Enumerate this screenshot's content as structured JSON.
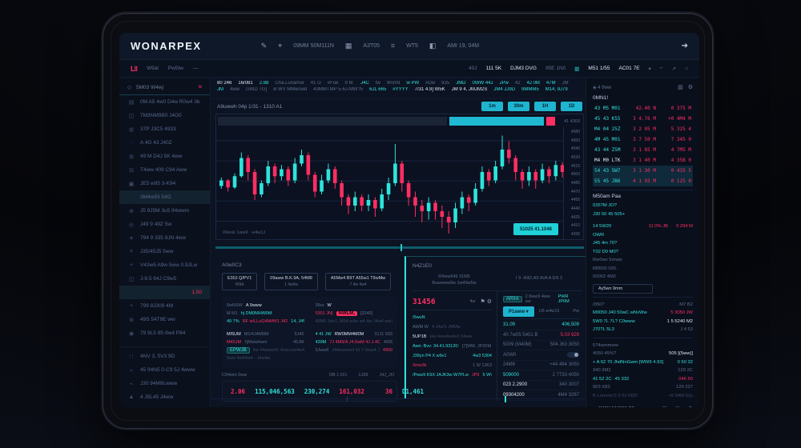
{
  "topbar": {
    "logo": "WONARPEX",
    "tokens": [
      {
        "i": "✎"
      },
      {
        "i": "⌖"
      },
      {
        "t": "09MM 50M111N"
      },
      {
        "i": "▦"
      },
      {
        "t": "A3T05"
      },
      {
        "i": "⌗"
      },
      {
        "t": "WT5"
      },
      {
        "i": "◧"
      },
      {
        "t": "AMI 19, 04M"
      }
    ],
    "far_icon": "➔"
  },
  "subbar": {
    "mark": "L‖",
    "items": [
      "W9al",
      "Pw5tw",
      "—"
    ],
    "right": [
      {
        "t": "40J",
        "c": "g"
      },
      {
        "t": "111 5K",
        "c": "w"
      },
      {
        "t": "DJM3 DVG",
        "c": "w"
      },
      {
        "t": "95E 1N0",
        "c": "g"
      },
      {
        "i": "▥",
        "c": "t"
      },
      {
        "t": "M51 1/55",
        "c": "w"
      },
      {
        "t": "AC01 7E",
        "c": "w"
      },
      {
        "i": "▾",
        "c": "g"
      },
      {
        "i": "⌐",
        "c": "g"
      },
      {
        "i": "↗",
        "c": "g"
      },
      {
        "i": "⌂",
        "c": "g"
      }
    ]
  },
  "sidebar": {
    "header": {
      "icon": "◇",
      "label": "5M03 W4wj",
      "tag": "w"
    },
    "rows": [
      {
        "icon": "▤",
        "label": "0M A5 4w0 D4w R0w4 3b"
      },
      {
        "icon": "◫",
        "label": "7M3NM9B0 J4G0"
      },
      {
        "icon": "◍",
        "label": "37P J3C5 4933"
      },
      {
        "icon": "◌",
        "label": "A 4G 43 J40Z"
      },
      {
        "icon": "⊞",
        "label": "49 M D4J 5K 4ww"
      },
      {
        "icon": "⊟",
        "label": "T4ww 409 C94 Aww"
      },
      {
        "icon": "▣",
        "label": "JE5 w95 3-K94"
      },
      {
        "icon": "",
        "label": "3M4w93 54G",
        "cls": "hl"
      },
      {
        "icon": "⊕",
        "label": "J5 9J5M 3u5 94wwm"
      },
      {
        "icon": "◎",
        "label": "J49 9 49Z 5w"
      },
      {
        "icon": "✶",
        "label": "794 9 335 9JN 4ww"
      },
      {
        "icon": "⌗",
        "label": "J35/45J5 5ww"
      },
      {
        "icon": "+",
        "label": "V43w5 A9w 5ww 0.9JLw"
      },
      {
        "icon": "◫",
        "label": "J-9.5 94J C9w5"
      },
      {
        "icon": "",
        "label": "",
        "value": "1,50",
        "cls": "hl red"
      },
      {
        "icon": "+",
        "label": "799 8J309 4M"
      },
      {
        "icon": "⊗",
        "label": "49S 54T9E ww"
      },
      {
        "icon": "◉",
        "label": "79 9L5 85-9w4 P84"
      },
      {
        "cls": "divider"
      },
      {
        "icon": "∷",
        "label": "4NV 3, 5V3 9D"
      },
      {
        "icon": "⌁",
        "label": "45 94N5 0-C9 5J 4www"
      },
      {
        "icon": "⌁",
        "label": "J30 94M9Lwww"
      },
      {
        "icon": "▲",
        "label": "4 J5L45 J4ww"
      }
    ]
  },
  "ticker": {
    "row1": [
      [
        "w",
        "80 246"
      ],
      [
        "w",
        "16/081"
      ],
      [
        "t",
        "2.88"
      ],
      [
        "g",
        "Cha.Lunamar"
      ],
      [
        "g",
        "41 G"
      ],
      [
        "g",
        "#Fue"
      ],
      [
        "g",
        "9 M."
      ],
      [
        "t",
        "J4C"
      ],
      [
        "g",
        "tw"
      ],
      [
        "g",
        "9mm9"
      ],
      [
        "t",
        "w PW"
      ],
      [
        "g",
        "#Dw"
      ],
      [
        "g",
        "935"
      ],
      [
        "t",
        "JMD"
      ],
      [
        "t",
        "0WW 44J"
      ],
      [
        "t",
        "JPw"
      ],
      [
        "g",
        "42"
      ],
      [
        "t",
        "4J 0M"
      ],
      [
        "t",
        "47M"
      ],
      [
        "g",
        "JM"
      ]
    ],
    "row2": [
      [
        "t",
        "JM"
      ],
      [
        "g",
        "4ww"
      ],
      [
        "g",
        "GWD TG]"
      ],
      [
        "g",
        "B WV MMwswd"
      ],
      [
        "g",
        "43MMTMP 5-6J-MW?5"
      ],
      [
        "t",
        "6JL 665"
      ],
      [
        "t",
        "#YYYY"
      ],
      [
        "w",
        "7/31 4.9] W5K"
      ],
      [
        "w",
        "JM 9 4, JMJM2S"
      ],
      [
        "t",
        "JM4 JJ9D"
      ],
      [
        "t",
        "9MMM5"
      ],
      [
        "t",
        "M14, 9J79"
      ]
    ]
  },
  "chart": {
    "title": "A9uwwh 04p 1/31 - 1310 A1",
    "timeframes": [
      "1m",
      "30m",
      "1H",
      "1D"
    ],
    "depth_note": "41 4303",
    "note": "09wuk 1ww9 · w4w1J",
    "cta": "51025 41.1046"
  },
  "chart_data": {
    "type": "candlestick",
    "up_color": "#2de4dc",
    "down_color": "#ff2e63",
    "yaxis_labels": [
      "4580",
      "4560",
      "4545",
      "4530",
      "4515",
      "4500",
      "4485",
      "4470",
      "4455",
      "4440",
      "4425",
      "4410",
      "4395"
    ],
    "candles": [
      [
        48,
        54,
        46,
        52
      ],
      [
        52,
        53,
        44,
        47
      ],
      [
        47,
        57,
        46,
        55
      ],
      [
        55,
        72,
        54,
        68
      ],
      [
        68,
        70,
        52,
        58
      ],
      [
        58,
        60,
        38,
        42
      ],
      [
        42,
        52,
        40,
        50
      ],
      [
        50,
        66,
        48,
        62
      ],
      [
        62,
        64,
        50,
        55
      ],
      [
        55,
        63,
        52,
        60
      ],
      [
        60,
        62,
        48,
        52
      ],
      [
        52,
        68,
        50,
        64
      ],
      [
        64,
        74,
        62,
        70
      ],
      [
        70,
        72,
        52,
        56
      ],
      [
        56,
        58,
        40,
        44
      ],
      [
        44,
        56,
        42,
        52
      ],
      [
        52,
        64,
        50,
        60
      ],
      [
        60,
        62,
        46,
        50
      ],
      [
        50,
        52,
        34,
        40
      ],
      [
        40,
        42,
        28,
        34
      ],
      [
        34,
        44,
        30,
        40
      ],
      [
        40,
        42,
        30,
        34
      ],
      [
        34,
        42,
        30,
        38
      ],
      [
        38,
        40,
        26,
        32
      ],
      [
        32,
        46,
        30,
        42
      ],
      [
        42,
        54,
        38,
        50
      ],
      [
        50,
        78,
        48,
        64
      ],
      [
        64,
        66,
        44,
        50
      ],
      [
        50,
        52,
        34,
        40
      ],
      [
        40,
        44,
        26,
        34
      ],
      [
        34,
        38,
        22,
        30
      ],
      [
        30,
        40,
        24,
        36
      ],
      [
        36,
        38,
        24,
        30
      ],
      [
        30,
        34,
        18,
        26
      ],
      [
        26,
        30,
        14,
        22
      ],
      [
        22,
        36,
        18,
        32
      ],
      [
        32,
        44,
        28,
        40
      ],
      [
        40,
        42,
        30,
        36
      ],
      [
        36,
        50,
        34,
        46
      ],
      [
        46,
        62,
        44,
        58
      ],
      [
        58,
        60,
        48,
        52
      ],
      [
        52,
        66,
        50,
        62
      ],
      [
        62,
        84,
        60,
        74
      ],
      [
        74,
        80,
        64,
        68
      ],
      [
        68,
        70,
        52,
        58
      ],
      [
        58,
        60,
        46,
        52
      ],
      [
        52,
        62,
        48,
        58
      ],
      [
        58,
        60,
        46,
        52
      ],
      [
        52,
        64,
        50,
        60
      ],
      [
        60,
        62,
        50,
        55
      ],
      [
        55,
        66,
        52,
        63
      ],
      [
        63,
        65,
        54,
        58
      ]
    ]
  },
  "left_panel": {
    "title": "A0w0C3",
    "tabs": [
      {
        "a": "E30J Q/PV1",
        "b": "W9A"
      },
      {
        "a": "09aww B.K.9A, 54M9",
        "b": "1 4w9w"
      },
      {
        "a": "A5Mw4 B9T  A55w1 T9wMw",
        "b": "7 4w 4w4"
      }
    ],
    "colA": [
      [
        [
          "g",
          "5wNXW"
        ],
        [
          "w",
          "A 9www"
        ]
      ],
      [
        [
          "g",
          "M M1"
        ],
        [
          "t",
          "hj DM0MHW0M"
        ]
      ],
      [
        [
          "t",
          "49 7%"
        ],
        [
          "r",
          "RF w/LLuG4M#M1 J42"
        ],
        [
          "t",
          "14, J4%"
        ]
      ],
      [],
      [
        [
          "w",
          "M/5UM"
        ],
        [
          "g",
          "M1/4JAM0M"
        ],
        [
          "gr",
          "5J40"
        ]
      ],
      [
        [
          "r",
          "M45JM"
        ],
        [
          "g",
          "7jMwwhwm"
        ],
        [
          "gr",
          "45JM"
        ]
      ],
      [
        [
          "bc",
          "EPWJB"
        ],
        [
          "d",
          "4w 44www41 4ww,ww4w4"
        ],
        [
          "gr",
          "7340"
        ]
      ],
      [
        [
          "d",
          "9ww 4w44w4 - J4w4w"
        ]
      ]
    ],
    "colB": [
      [
        [
          "g",
          "09ur"
        ],
        [
          "w",
          "W"
        ]
      ],
      [
        [
          "r",
          "5301 JN]"
        ],
        [
          "br",
          "NWLM,"
        ],
        [
          "g",
          "[3240]"
        ]
      ],
      [
        [
          "d",
          "49M5 Jwv1 J454 w4w w4 4w J4w4 ww1"
        ]
      ],
      [],
      [
        [
          "t",
          "4 41 JW"
        ],
        [
          "w",
          "RW0MM4M0M"
        ],
        [
          "gr",
          "31J1 933"
        ]
      ],
      [
        [
          "t",
          "439M"
        ],
        [
          "r",
          "7J 4M9/A J4.5wM 4J J.4C"
        ],
        [
          "gr",
          "4999 435"
        ]
      ],
      [
        [
          "g",
          "5Jww9"
        ],
        [
          "d",
          "J44wwww4 4J 7 9ww4 J"
        ],
        [
          "rr",
          "4900 434"
        ]
      ]
    ],
    "footer_label": "C04wm 0ww",
    "footer_cols": [
      "DB 1 D/1",
      "1J39",
      "J4J_JO"
    ],
    "footer_values": [
      [
        "r",
        "2.06"
      ],
      [
        "t",
        "115,046,563"
      ],
      [
        "t",
        "230,274"
      ],
      [
        "r",
        "161,032"
      ],
      [
        "rsp",
        "36"
      ],
      [
        "t",
        "D1,461"
      ]
    ]
  },
  "mid_panel": {
    "title": "N4Z1E0",
    "head_left1": "R9ww949 31M5",
    "head_left2": "Buwwww9w 1w49w5w",
    "head_right": "I 9  -A9D.A9  AVA  A  EN 3",
    "price": "31456",
    "price_side": "4w",
    "price_icons": [
      "⚑",
      "⚙"
    ],
    "rowsA": [
      [
        [
          "t",
          "/5wuN"
        ]
      ],
      [
        [
          "g",
          "AWM W"
        ],
        [
          "d",
          "4 J4w'5 JMMw"
        ]
      ],
      [
        [
          "w",
          "5UP1B"
        ],
        [
          "d",
          "ww 4ww4w4w1 54ww"
        ]
      ],
      [
        [
          "t",
          "Awn: Bvv: 34.41.93120:"
        ],
        [
          "g",
          "[7]WM. JP20M"
        ]
      ],
      [
        [
          "t",
          "J39yn P4 X w9v1"
        ],
        [
          "tr",
          "4w3 5304"
        ]
      ],
      [
        [
          "r",
          "3mw3k"
        ],
        [
          "gr",
          "1 W 1JK3"
        ]
      ],
      [
        [
          "t",
          "/Pww9 K9X JAJK3w W7PLw"
        ],
        [
          "r",
          "JP9"
        ],
        [
          "tr",
          "5 WV"
        ]
      ]
    ],
    "badge": "ARI!A",
    "badge_note": "2.9ww9 4ww aw",
    "badge_val": "PWR JP0M",
    "place_btn": "P1aww ▾",
    "place_note": "U5 w4w15",
    "place_side": "Pw",
    "rowsB": [
      [
        [
          "t",
          "31.09"
        ],
        [
          "tr",
          "406,509"
        ]
      ],
      [
        [
          "g",
          "40 7w05 5401 B"
        ],
        [
          "rr",
          "5.03 929"
        ]
      ],
      [
        [
          "g",
          "5009 (M40M)"
        ],
        [
          "gr",
          "504 J63 3050"
        ]
      ],
      [
        [
          "g",
          "A0W0"
        ],
        [
          "toggle",
          ""
        ]
      ],
      [
        [
          "g",
          "24M6"
        ],
        [
          "gr",
          "+44 494 3050"
        ]
      ],
      [
        [
          "t",
          "509000"
        ],
        [
          "gr",
          "2 7733 4050"
        ]
      ],
      [
        [
          "w",
          "023 2.2900"
        ],
        [
          "gr",
          "340 3007"
        ]
      ],
      [
        [
          "w",
          "09304200"
        ],
        [
          "gr",
          "4M4 3267"
        ]
      ]
    ]
  },
  "book": {
    "tools_left": "◈ 4 9ww",
    "tools_icons": [
      "▥",
      "⚙"
    ],
    "label": "0MN1!",
    "rows": [
      {
        "p": "43 M5 M01",
        "q": "42.40 N",
        "t": "0 375 M"
      },
      {
        "p": "45 43 K55",
        "q": "3 4.76 M",
        "t": "+0 4M4 M"
      },
      {
        "p": "M4 04 25Z",
        "q": "3 2 05 M",
        "t": "5 325 4"
      },
      {
        "p": "4M 45 M01",
        "q": "3 7 50 M",
        "t": "7 345 0"
      },
      {
        "p": "43 44 Z5M",
        "q": "3 1 85 M",
        "t": "4 7M5 M"
      },
      {
        "p": "M4 M0 LTK",
        "q": "3 1 40 M",
        "t": "4 35B 0",
        "cls": "white"
      },
      {
        "p": "54 43 5W7",
        "q": "3 1 30 M",
        "t": "0 435 5",
        "cls": "hl"
      },
      {
        "p": "55 45 JB6",
        "q": "4 1 93 M",
        "t": "0 125 0",
        "cls": "hl"
      }
    ],
    "sections": [
      {
        "type": "label",
        "t": "M50am Paa"
      },
      {
        "type": "line",
        "l": [
          [
            "t",
            "035?M JO?"
          ]
        ],
        "r": []
      },
      {
        "type": "line",
        "l": [
          [
            "t",
            "J30 50 45  505+"
          ]
        ],
        "r": []
      },
      {
        "type": "gap"
      },
      {
        "type": "line",
        "l": [
          [
            "t",
            "14 5W20"
          ]
        ],
        "r": [
          [
            "r",
            "11 0% JB"
          ],
          [
            "r",
            "0 294 M"
          ]
        ]
      },
      {
        "type": "line",
        "l": [
          [
            "t",
            "OWR"
          ]
        ],
        "r": []
      },
      {
        "type": "line",
        "l": [
          [
            "t",
            "J45 4m 70?"
          ]
        ],
        "r": []
      },
      {
        "type": "line",
        "l": [
          [
            "t",
            "T02 D0 M0?"
          ]
        ],
        "r": []
      },
      {
        "type": "line",
        "l": [
          [
            "g",
            "Rw0ws 5mww"
          ]
        ],
        "r": []
      },
      {
        "type": "line",
        "l": [
          [
            "g",
            "M0500 035."
          ]
        ],
        "r": []
      },
      {
        "type": "line",
        "l": [
          [
            "g",
            "50002 4M2"
          ]
        ],
        "r": []
      },
      {
        "type": "box",
        "t": "Ay5wn 9mm"
      },
      {
        "type": "divider"
      },
      {
        "type": "line",
        "l": [
          [
            "g",
            "/050?"
          ]
        ],
        "r": [
          [
            "g",
            "M7 B2"
          ]
        ]
      },
      {
        "type": "line",
        "l": [
          [
            "t",
            "M0050 J40 50wC wNvWw"
          ]
        ],
        "r": [
          [
            "r",
            "5 3050 JW"
          ]
        ]
      },
      {
        "type": "line",
        "l": [
          [
            "t",
            "5W0 7L 7L? C0www"
          ]
        ],
        "r": [
          [
            "w",
            "1 5 5240 M2"
          ]
        ]
      },
      {
        "type": "line",
        "l": [
          [
            "t",
            "J70?L 5L3"
          ]
        ],
        "r": [
          [
            "g",
            "J 4 53"
          ]
        ]
      },
      {
        "type": "divider"
      },
      {
        "type": "line",
        "l": [
          [
            "g",
            "5?4wmmww"
          ]
        ],
        "r": []
      },
      {
        "type": "line",
        "l": [
          [
            "g",
            "4050 45%?"
          ]
        ],
        "r": [
          [
            "w",
            "505 [(5ww)]"
          ]
        ]
      },
      {
        "type": "line",
        "l": [
          [
            "t",
            "+ A 62 70 JhdNnGwm [WW9 4.93]"
          ]
        ],
        "r": [
          [
            "t",
            "0 50 32"
          ]
        ]
      },
      {
        "type": "line",
        "l": [
          [
            "g",
            "340 3M2"
          ]
        ],
        "r": [
          [
            "g",
            "129 2C"
          ]
        ]
      },
      {
        "type": "line",
        "l": [
          [
            "t",
            "41 52 2C"
          ],
          [
            "t",
            "45 332"
          ]
        ],
        "r": [
          [
            "r",
            "046 50"
          ]
        ]
      },
      {
        "type": "line",
        "l": [
          [
            "g",
            "903 X83"
          ]
        ],
        "r": [
          [
            "g",
            "129 227"
          ]
        ]
      },
      {
        "type": "line",
        "l": [
          [
            "d",
            "B Lnnnnn  0 3 02 M20"
          ]
        ],
        "r": [
          [
            "d",
            "+5 94M 52y"
          ]
        ]
      },
      {
        "type": "footer",
        "t": "▲ 5WW A04030 O5",
        "icons": [
          "▤",
          "✉",
          "⚙"
        ]
      }
    ]
  },
  "colors": {
    "accent_teal": "#2fe0da",
    "accent_red": "#ff2e63",
    "bg_screen": "#0c1322",
    "button_cyan": "#1fb4cf"
  }
}
